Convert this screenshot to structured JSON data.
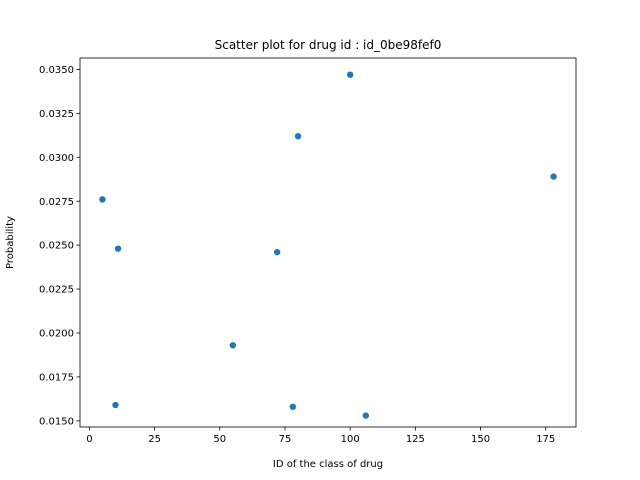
{
  "chart_data": {
    "type": "scatter",
    "title": "Scatter plot for drug id : id_0be98fef0",
    "xlabel": "ID of the class of drug",
    "ylabel": "Probability",
    "xlim": [
      -3.6,
      186.6
    ],
    "ylim": [
      0.01465,
      0.03565
    ],
    "xticks": [
      0,
      25,
      50,
      75,
      100,
      125,
      150,
      175
    ],
    "xtick_labels": [
      "0",
      "25",
      "50",
      "75",
      "100",
      "125",
      "150",
      "175"
    ],
    "yticks": [
      0.015,
      0.0175,
      0.02,
      0.0225,
      0.025,
      0.0275,
      0.03,
      0.0325,
      0.035
    ],
    "ytick_labels": [
      "0.0150",
      "0.0175",
      "0.0200",
      "0.0225",
      "0.0250",
      "0.0275",
      "0.0300",
      "0.0325",
      "0.0350"
    ],
    "grid": false,
    "marker_color": "#1f77b4",
    "points": [
      {
        "x": 5,
        "y": 0.0276
      },
      {
        "x": 10,
        "y": 0.0159
      },
      {
        "x": 11,
        "y": 0.0248
      },
      {
        "x": 55,
        "y": 0.0193
      },
      {
        "x": 72,
        "y": 0.0246
      },
      {
        "x": 78,
        "y": 0.0158
      },
      {
        "x": 80,
        "y": 0.0312
      },
      {
        "x": 100,
        "y": 0.0347
      },
      {
        "x": 106,
        "y": 0.0153
      },
      {
        "x": 178,
        "y": 0.0289
      }
    ]
  }
}
